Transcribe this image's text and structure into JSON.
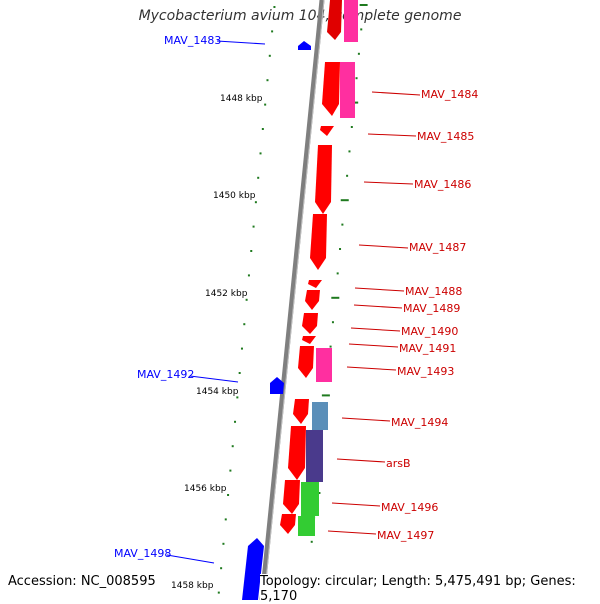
{
  "title": "Mycobacterium avium 104, complete genome",
  "accession": "Accession: NC_008595",
  "topology": "Topology: circular; Length: 5,475,491 bp; Genes: 5,170",
  "colors": {
    "forward_cds": "#ff0000",
    "reverse_cds": "#0000ff",
    "pink_feature": "#ff2fa0",
    "blue_feature": "#5b8fb9",
    "purple_feature": "#4a3a8c",
    "green_feature": "#33cc33",
    "backbone": "#7f7f7f",
    "tick": "#1f7a1f"
  },
  "kbp_labels": [
    "1448 kbp",
    "1450 kbp",
    "1452 kbp",
    "1454 kbp",
    "1456 kbp",
    "1458 kbp"
  ],
  "gene_labels_left": [
    "MAV_1483",
    "MAV_1492",
    "MAV_1498"
  ],
  "gene_labels_right": [
    "MAV_1484",
    "MAV_1485",
    "MAV_1486",
    "MAV_1487",
    "MAV_1488",
    "MAV_1489",
    "MAV_1490",
    "MAV_1491",
    "MAV_1493",
    "MAV_1494",
    "arsB",
    "MAV_1496",
    "MAV_1497"
  ]
}
